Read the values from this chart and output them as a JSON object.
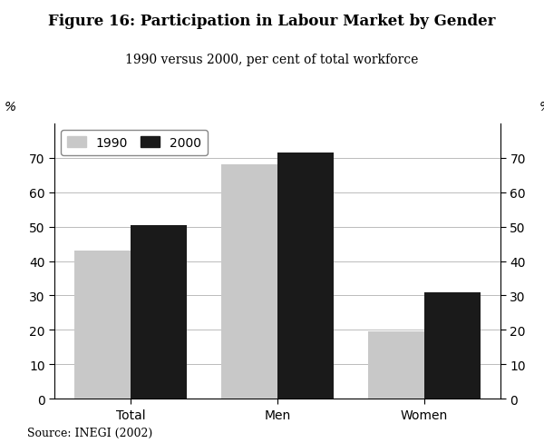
{
  "title": "Figure 16: Participation in Labour Market by Gender",
  "subtitle": "1990 versus 2000, per cent of total workforce",
  "categories": [
    "Total",
    "Men",
    "Women"
  ],
  "values_1990": [
    43,
    68,
    19.5
  ],
  "values_2000": [
    50.5,
    71.5,
    31
  ],
  "color_1990": "#c8c8c8",
  "color_2000": "#1a1a1a",
  "ylim": [
    0,
    80
  ],
  "yticks": [
    0,
    10,
    20,
    30,
    40,
    50,
    60,
    70
  ],
  "ylabel_left": "%",
  "ylabel_right": "%",
  "source": "Source: INEGI (2002)",
  "legend_labels": [
    "1990",
    "2000"
  ],
  "bar_width": 0.38,
  "title_fontsize": 12,
  "subtitle_fontsize": 10,
  "tick_fontsize": 10,
  "legend_fontsize": 10,
  "source_fontsize": 9,
  "background_color": "#ffffff"
}
